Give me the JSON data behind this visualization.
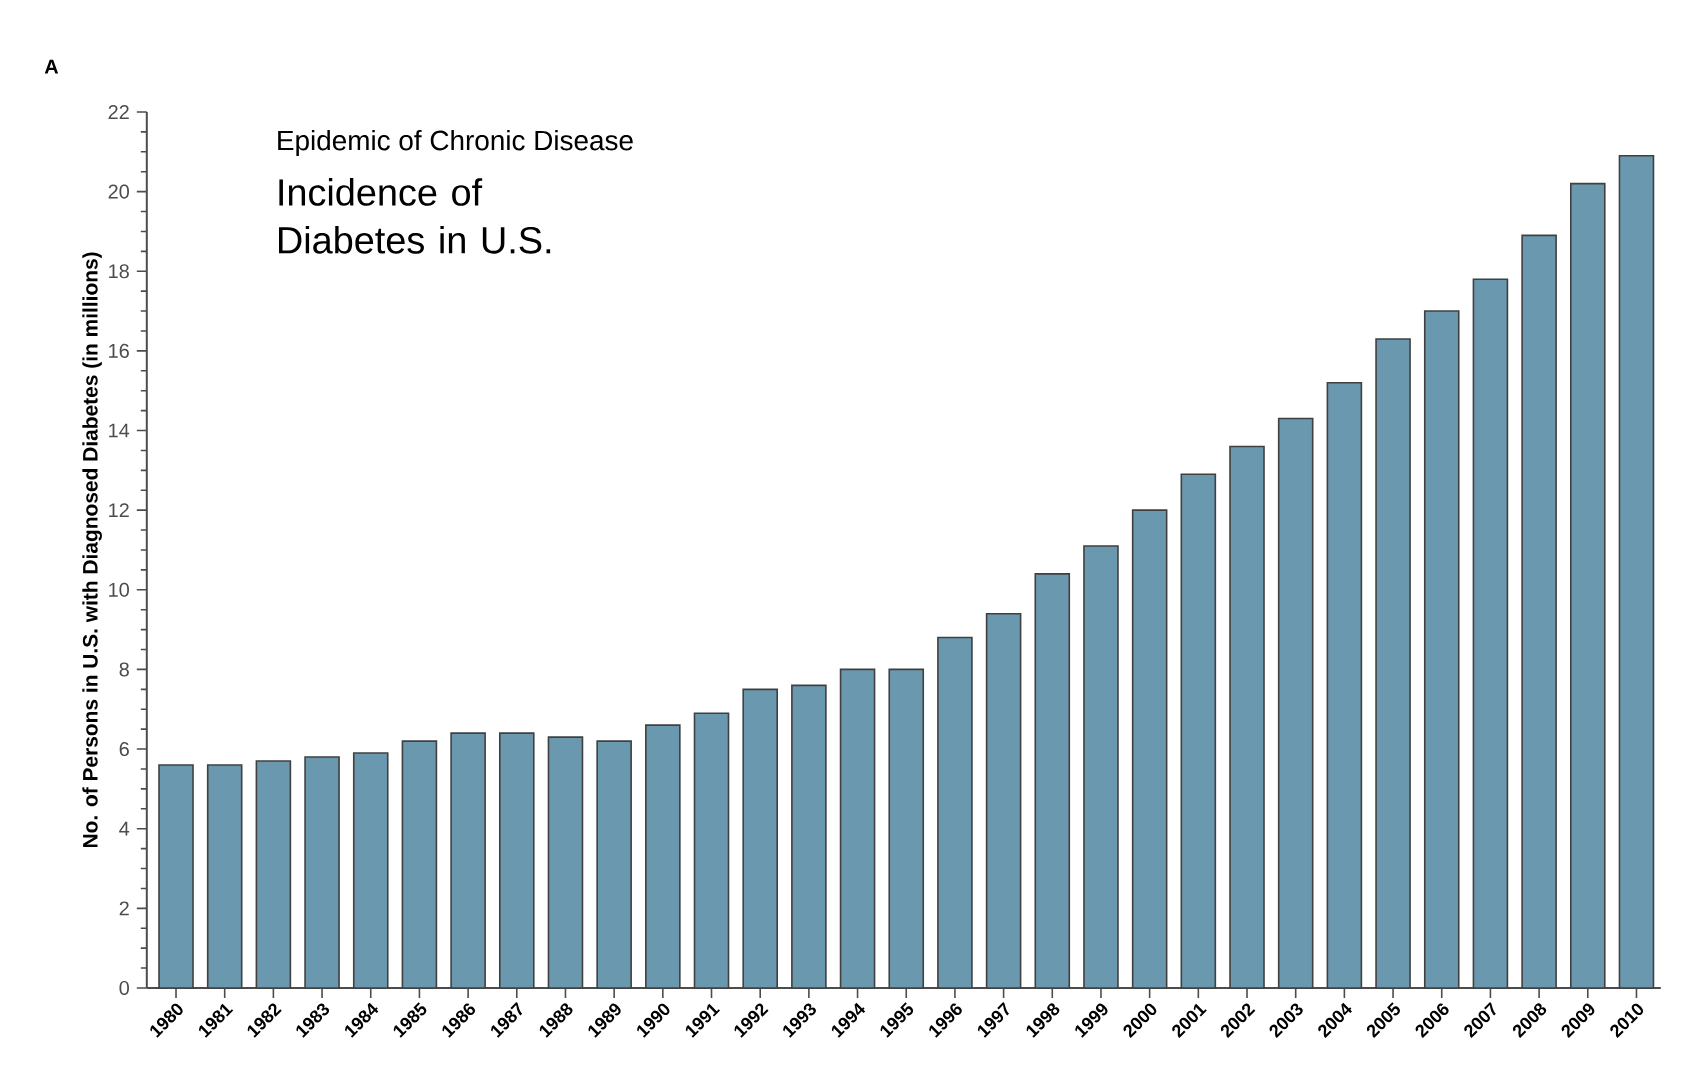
{
  "chart_data": {
    "type": "bar",
    "title": "Incidence of Diabetes in U.S.",
    "subtitle": "Epidemic of Chronic Disease",
    "ylabel": "No. of  Persons in U.S. with Diagnosed Diabetes (in millions)",
    "annotations": [
      "A"
    ],
    "categories": [
      "1980",
      "1981",
      "1982",
      "1983",
      "1984",
      "1985",
      "1986",
      "1987",
      "1988",
      "1989",
      "1990",
      "1991",
      "1992",
      "1993",
      "1994",
      "1995",
      "1996",
      "1997",
      "1998",
      "1999",
      "2000",
      "2001",
      "2002",
      "2003",
      "2004",
      "2005",
      "2006",
      "2007",
      "2008",
      "2009",
      "2010"
    ],
    "values": [
      5.6,
      5.6,
      5.7,
      5.8,
      5.9,
      6.2,
      6.4,
      6.4,
      6.3,
      6.2,
      6.6,
      6.9,
      7.5,
      7.6,
      8.0,
      8.0,
      8.8,
      9.4,
      10.4,
      11.1,
      12.0,
      12.9,
      13.6,
      14.3,
      15.2,
      16.3,
      17.0,
      17.8,
      18.9,
      20.2,
      20.9
    ],
    "color": "#6a98ae",
    "ylim": [
      0,
      22
    ],
    "yticks": [
      0,
      2,
      4,
      6,
      8,
      10,
      12,
      14,
      16,
      18,
      20,
      22
    ],
    "grid": false
  }
}
